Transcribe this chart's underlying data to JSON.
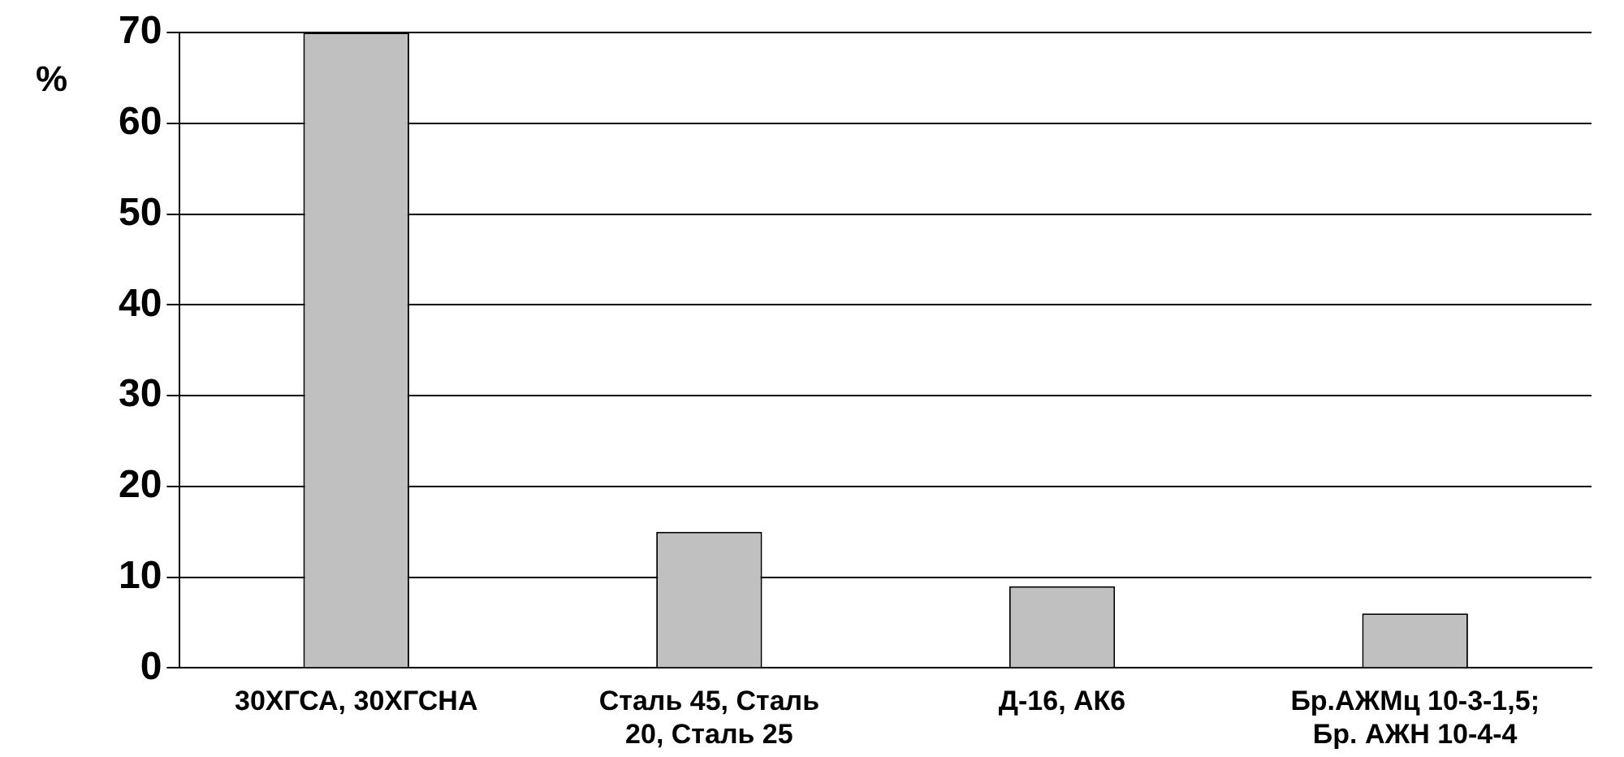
{
  "chart_data": {
    "type": "bar",
    "ylabel": "%",
    "categories": [
      "30ХГСА, 30ХГСНА",
      "Сталь 45, Сталь 20, Сталь 25",
      "Д-16, АК6",
      "Бр.АЖМц 10-3-1,5; Бр. АЖН 10-4-4"
    ],
    "values": [
      70,
      15,
      9,
      6
    ],
    "color": "#c0c0c0",
    "ylim": [
      0,
      70
    ],
    "yticks": [
      0,
      10,
      20,
      30,
      40,
      50,
      60,
      70
    ],
    "grid": "y"
  }
}
